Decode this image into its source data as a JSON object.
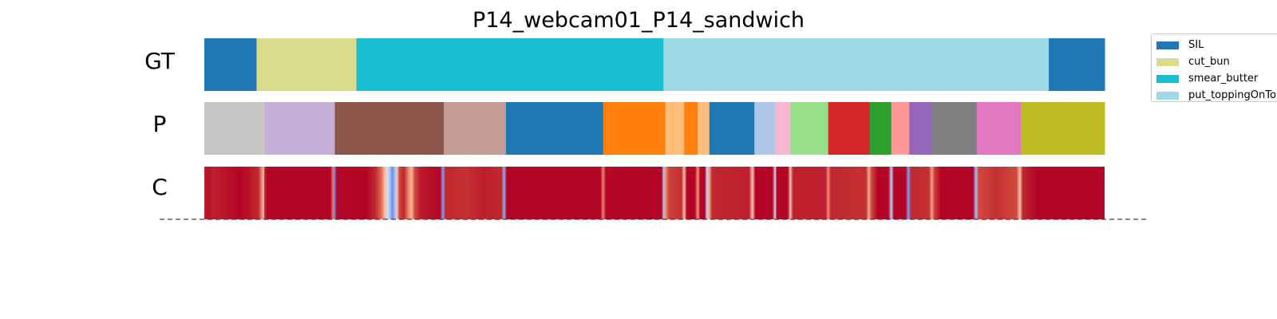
{
  "chart_data": {
    "type": "segmentation",
    "title": "P14_webcam01_P14_sandwich",
    "xlim": [
      0,
      1000
    ],
    "rows": [
      {
        "label": "GT",
        "segments": [
          {
            "start": 0,
            "end": 58,
            "color": "#1f77b4",
            "action": "SIL"
          },
          {
            "start": 58,
            "end": 169,
            "color": "#dbdb8d",
            "action": "cut_bun"
          },
          {
            "start": 169,
            "end": 510,
            "color": "#17becf",
            "action": "smear_butter"
          },
          {
            "start": 510,
            "end": 938,
            "color": "#9edae5",
            "action": "put_toppingOnTop"
          },
          {
            "start": 938,
            "end": 1000,
            "color": "#1f77b4",
            "action": "SIL"
          }
        ]
      },
      {
        "label": "P",
        "segments": [
          {
            "start": 0,
            "end": 67,
            "color": "#c7c7c7"
          },
          {
            "start": 67,
            "end": 145,
            "color": "#c5b0d5"
          },
          {
            "start": 145,
            "end": 266,
            "color": "#8c564b"
          },
          {
            "start": 266,
            "end": 335,
            "color": "#c49c94"
          },
          {
            "start": 335,
            "end": 443,
            "color": "#1f77b4"
          },
          {
            "start": 443,
            "end": 512,
            "color": "#ff7f0e"
          },
          {
            "start": 512,
            "end": 533,
            "color": "#ffbb78"
          },
          {
            "start": 533,
            "end": 548,
            "color": "#ff7f0e"
          },
          {
            "start": 548,
            "end": 561,
            "color": "#ffbb78"
          },
          {
            "start": 561,
            "end": 611,
            "color": "#1f77b4"
          },
          {
            "start": 611,
            "end": 634,
            "color": "#aec7e8"
          },
          {
            "start": 634,
            "end": 651,
            "color": "#f7b6d2"
          },
          {
            "start": 651,
            "end": 693,
            "color": "#98df8a"
          },
          {
            "start": 693,
            "end": 739,
            "color": "#d62728"
          },
          {
            "start": 739,
            "end": 763,
            "color": "#2ca02c"
          },
          {
            "start": 763,
            "end": 783,
            "color": "#ff9896"
          },
          {
            "start": 783,
            "end": 808,
            "color": "#9467bd"
          },
          {
            "start": 808,
            "end": 858,
            "color": "#7f7f7f"
          },
          {
            "start": 858,
            "end": 907,
            "color": "#e377c2"
          },
          {
            "start": 907,
            "end": 1000,
            "color": "#bcbd22"
          }
        ]
      },
      {
        "label": "C",
        "base_color": "#b40426",
        "confidence_stops": [
          {
            "x": 0,
            "color": "#bb1b2c"
          },
          {
            "x": 5,
            "color": "#b8122a"
          },
          {
            "x": 10,
            "color": "#bd1f2d"
          },
          {
            "x": 40,
            "color": "#b40426"
          },
          {
            "x": 60,
            "color": "#c0282f"
          },
          {
            "x": 66,
            "color": "#f5c2aa"
          },
          {
            "x": 67,
            "color": "#c0282f"
          },
          {
            "x": 70,
            "color": "#b40426"
          },
          {
            "x": 140,
            "color": "#b40426"
          },
          {
            "x": 143,
            "color": "#e67c5f"
          },
          {
            "x": 145,
            "color": "#6282ea"
          },
          {
            "x": 147,
            "color": "#b40426"
          },
          {
            "x": 180,
            "color": "#b40426"
          },
          {
            "x": 190,
            "color": "#c0282f"
          },
          {
            "x": 197,
            "color": "#e46e56"
          },
          {
            "x": 200,
            "color": "#f7b599"
          },
          {
            "x": 203,
            "color": "#dcdddd"
          },
          {
            "x": 206,
            "color": "#aac7fd"
          },
          {
            "x": 209,
            "color": "#6788ee"
          },
          {
            "x": 212,
            "color": "#aac7fd"
          },
          {
            "x": 214,
            "color": "#f2c9b4"
          },
          {
            "x": 217,
            "color": "#cd423b"
          },
          {
            "x": 222,
            "color": "#c0282f"
          },
          {
            "x": 226,
            "color": "#e67c5f"
          },
          {
            "x": 230,
            "color": "#f7b89c"
          },
          {
            "x": 234,
            "color": "#d0473d"
          },
          {
            "x": 240,
            "color": "#bb1b2c"
          },
          {
            "x": 262,
            "color": "#b40426"
          },
          {
            "x": 265,
            "color": "#7ea1fa"
          },
          {
            "x": 268,
            "color": "#c0282f"
          },
          {
            "x": 290,
            "color": "#c43032"
          },
          {
            "x": 310,
            "color": "#bd1f2d"
          },
          {
            "x": 330,
            "color": "#c0282f"
          },
          {
            "x": 333,
            "color": "#8db0fe"
          },
          {
            "x": 336,
            "color": "#b40426"
          },
          {
            "x": 440,
            "color": "#b40426"
          },
          {
            "x": 443,
            "color": "#ee8468"
          },
          {
            "x": 446,
            "color": "#b40426"
          },
          {
            "x": 508,
            "color": "#b40426"
          },
          {
            "x": 510,
            "color": "#9fbfff"
          },
          {
            "x": 512,
            "color": "#f4987a"
          },
          {
            "x": 516,
            "color": "#cd423b"
          },
          {
            "x": 530,
            "color": "#c43032"
          },
          {
            "x": 533,
            "color": "#f5c2aa"
          },
          {
            "x": 536,
            "color": "#b40426"
          },
          {
            "x": 545,
            "color": "#b40426"
          },
          {
            "x": 548,
            "color": "#f39577"
          },
          {
            "x": 551,
            "color": "#b40426"
          },
          {
            "x": 556,
            "color": "#b40426"
          },
          {
            "x": 558,
            "color": "#b9d0f9"
          },
          {
            "x": 561,
            "color": "#f6a385"
          },
          {
            "x": 564,
            "color": "#c0282f"
          },
          {
            "x": 605,
            "color": "#bd1f2d"
          },
          {
            "x": 609,
            "color": "#f2cbb7"
          },
          {
            "x": 612,
            "color": "#b40426"
          },
          {
            "x": 631,
            "color": "#b40426"
          },
          {
            "x": 634,
            "color": "#c9d7f0"
          },
          {
            "x": 636,
            "color": "#b40426"
          },
          {
            "x": 648,
            "color": "#b40426"
          },
          {
            "x": 651,
            "color": "#f3c7b1"
          },
          {
            "x": 654,
            "color": "#bd1f2d"
          },
          {
            "x": 690,
            "color": "#bd1f2d"
          },
          {
            "x": 693,
            "color": "#f08a6c"
          },
          {
            "x": 696,
            "color": "#c0282f"
          },
          {
            "x": 735,
            "color": "#c43032"
          },
          {
            "x": 738,
            "color": "#f7ac8e"
          },
          {
            "x": 741,
            "color": "#d1493f"
          },
          {
            "x": 748,
            "color": "#b40426"
          },
          {
            "x": 760,
            "color": "#b40426"
          },
          {
            "x": 763,
            "color": "#bad0f8"
          },
          {
            "x": 766,
            "color": "#b40426"
          },
          {
            "x": 779,
            "color": "#b40426"
          },
          {
            "x": 782,
            "color": "#7ea1fa"
          },
          {
            "x": 785,
            "color": "#c0282f"
          },
          {
            "x": 805,
            "color": "#c43032"
          },
          {
            "x": 808,
            "color": "#f6a586"
          },
          {
            "x": 811,
            "color": "#cd423b"
          },
          {
            "x": 818,
            "color": "#b40426"
          },
          {
            "x": 854,
            "color": "#b40426"
          },
          {
            "x": 857,
            "color": "#a3c2fe"
          },
          {
            "x": 860,
            "color": "#d1493f"
          },
          {
            "x": 880,
            "color": "#c43032"
          },
          {
            "x": 895,
            "color": "#cd423b"
          },
          {
            "x": 902,
            "color": "#d1493f"
          },
          {
            "x": 906,
            "color": "#f5c1a9"
          },
          {
            "x": 909,
            "color": "#c0282f"
          },
          {
            "x": 925,
            "color": "#b40426"
          },
          {
            "x": 1000,
            "color": "#b40426"
          }
        ]
      }
    ],
    "legend": {
      "placement": "upper-right",
      "entries": [
        {
          "label": "SIL",
          "color": "#1f77b4"
        },
        {
          "label": "cut_bun",
          "color": "#dbdb8d"
        },
        {
          "label": "smear_butter",
          "color": "#17becf"
        },
        {
          "label": "put_toppingOnTop",
          "color": "#9edae5"
        }
      ]
    },
    "baseline": "dashed"
  }
}
